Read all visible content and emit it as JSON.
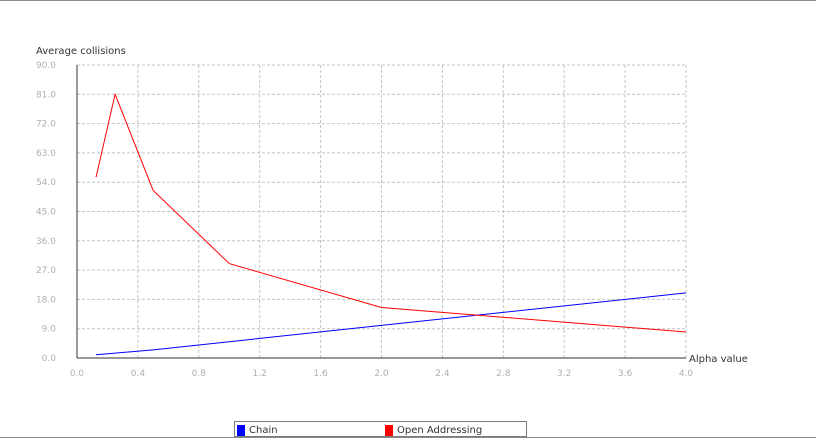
{
  "chart_data": {
    "type": "line",
    "ylabel": "Average collisions",
    "xlabel": "Alpha value",
    "xlim": [
      0.0,
      4.0
    ],
    "ylim": [
      0.0,
      90.0
    ],
    "x_ticks": [
      "0.0",
      "0.4",
      "0.8",
      "1.2",
      "1.6",
      "2.0",
      "2.4",
      "2.8",
      "3.2",
      "3.6",
      "4.0"
    ],
    "y_ticks": [
      "0.0",
      "9.0",
      "18.0",
      "27.0",
      "36.0",
      "45.0",
      "54.0",
      "63.0",
      "72.0",
      "81.0",
      "90.0"
    ],
    "grid": true,
    "legend_position": "bottom",
    "series": [
      {
        "name": "Chain",
        "color": "#0000ff",
        "points": [
          [
            0.125,
            1.0
          ],
          [
            0.25,
            1.5
          ],
          [
            0.5,
            2.5
          ],
          [
            1.0,
            5.0
          ],
          [
            2.0,
            10.0
          ],
          [
            4.0,
            20.0
          ]
        ]
      },
      {
        "name": "Open Addressing",
        "color": "#ff0000",
        "points": [
          [
            0.125,
            55.5
          ],
          [
            0.25,
            81.0
          ],
          [
            0.5,
            51.5
          ],
          [
            1.0,
            29.0
          ],
          [
            2.0,
            15.5
          ],
          [
            4.0,
            8.0
          ]
        ]
      }
    ]
  }
}
